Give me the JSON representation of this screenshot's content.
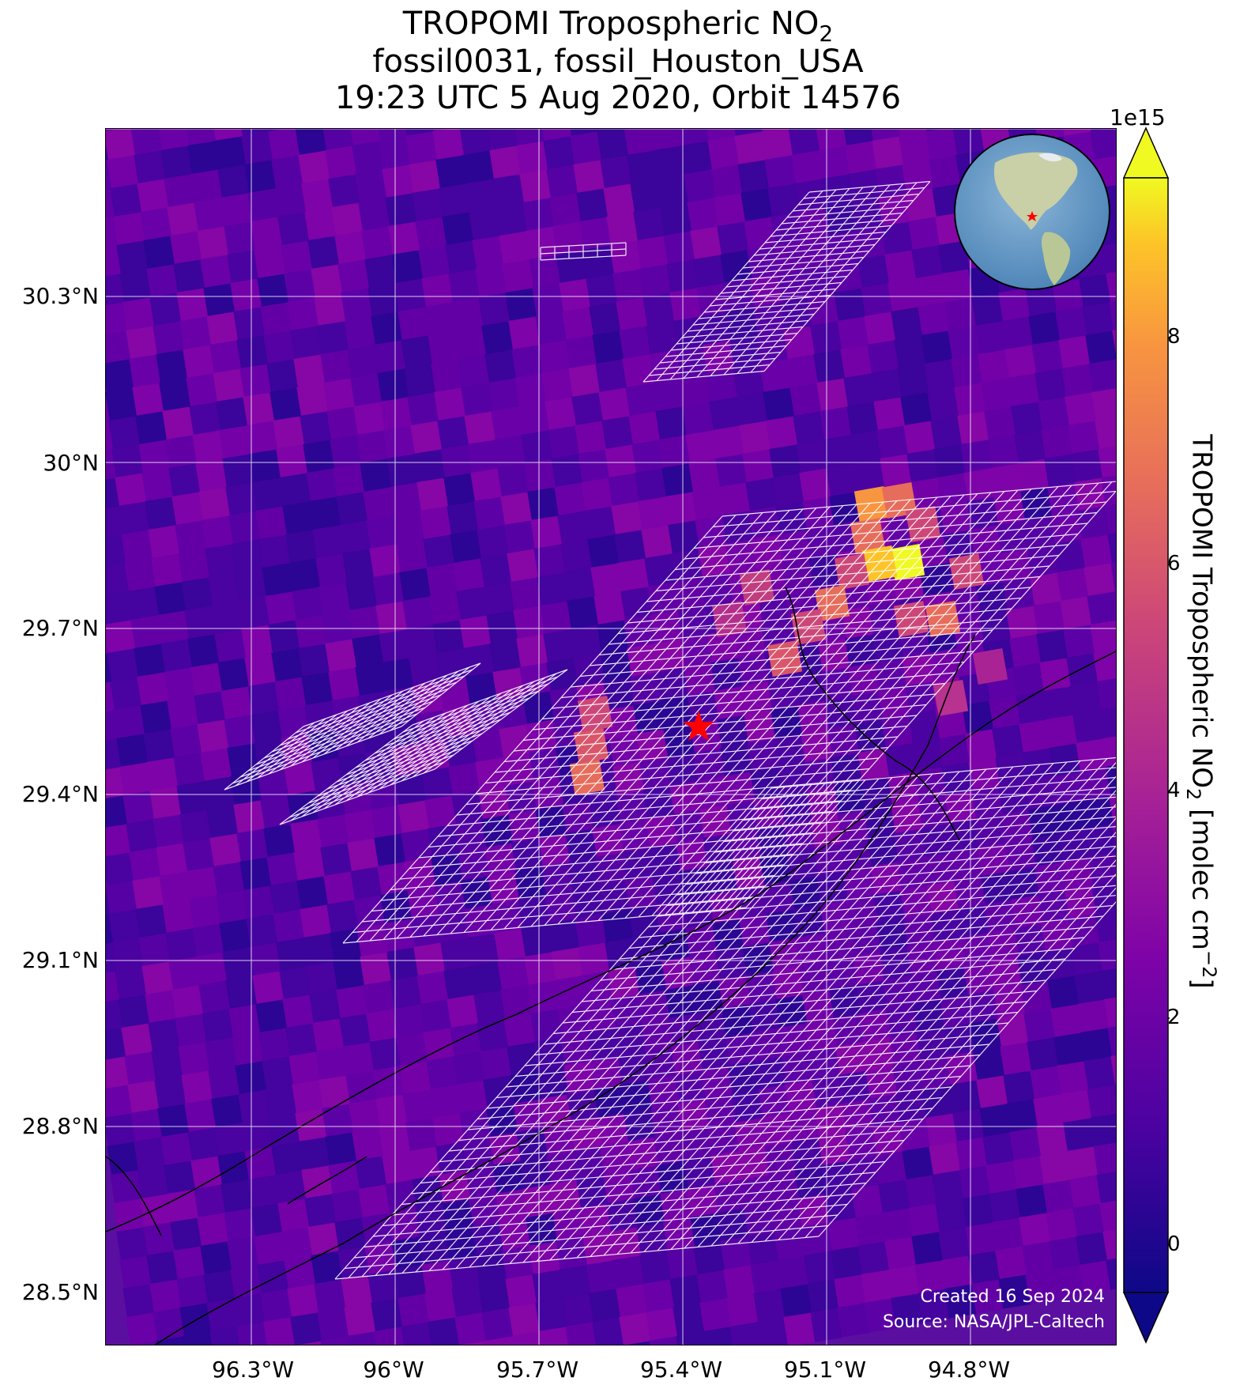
{
  "title": {
    "line1_prefix": "TROPOMI Tropospheric NO",
    "line1_sub": "2",
    "line2": "fossil0031, fossil_Houston_USA",
    "line3": "19:23 UTC 5 Aug 2020, Orbit 14576"
  },
  "map": {
    "lat_ticks": [
      "30.3°N",
      "30°N",
      "29.7°N",
      "29.4°N",
      "29.1°N",
      "28.8°N",
      "28.5°N"
    ],
    "lon_ticks": [
      "96.3°W",
      "96°W",
      "95.7°W",
      "95.4°W",
      "95.1°W",
      "94.8°W"
    ],
    "target_marker": "red-star",
    "credits": {
      "created": "Created 16 Sep 2024",
      "source": "Source: NASA/JPL-Caltech"
    }
  },
  "colorbar": {
    "exponent": "1e15",
    "ticks": [
      "8",
      "6",
      "4",
      "2",
      "0"
    ],
    "label_prefix": "TROPOMI Tropospheric NO",
    "label_sub": "2",
    "label_mid": " [molec cm",
    "label_sup": "−2",
    "label_suffix": "]",
    "colormap": "plasma",
    "range": [
      -0.5,
      9.0
    ]
  },
  "colors": {
    "background_plasma_low": "#0d0887",
    "background_plasma_mid": "#6a00a8",
    "plume_high": "#f0f921",
    "grid_overlay": "#ffffff",
    "marker": "#ff0000"
  }
}
